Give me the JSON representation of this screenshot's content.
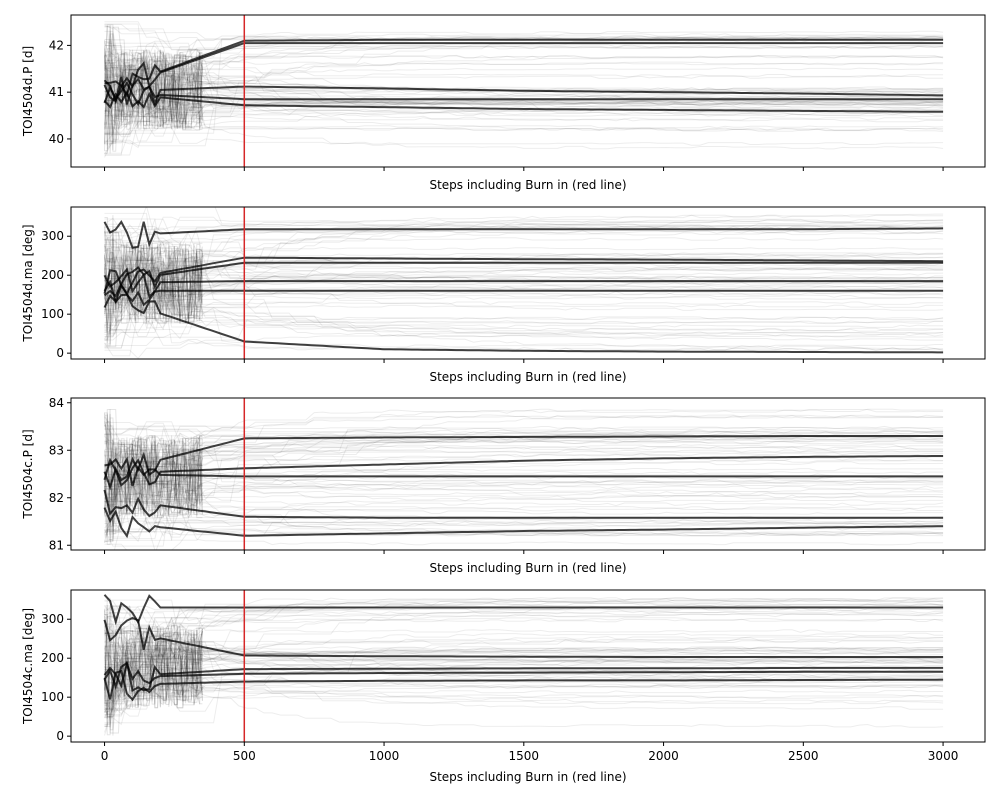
{
  "chart_data": [
    {
      "type": "line",
      "title": "",
      "xlabel": "Steps including Burn in (red line)",
      "ylabel": "TOI4504d.P [d]",
      "xlim": [
        -120,
        3150
      ],
      "ylim": [
        39.4,
        42.65
      ],
      "x_ticks": [
        0,
        500,
        1000,
        1500,
        2000,
        2500,
        3000
      ],
      "y_ticks": [
        40,
        41,
        42
      ],
      "burn_in_step": 500,
      "x_tick_labels_shown": false,
      "walker_start_range": [
        39.6,
        42.5
      ],
      "series": [
        {
          "x": [
            0,
            500,
            1000,
            1500,
            2000,
            2500,
            3000
          ],
          "y": [
            41.0,
            42.1,
            42.12,
            42.12,
            42.12,
            42.12,
            42.12
          ]
        },
        {
          "x": [
            0,
            500,
            1000,
            1500,
            2000,
            2500,
            3000
          ],
          "y": [
            41.0,
            42.05,
            42.05,
            42.05,
            42.05,
            42.05,
            42.05
          ]
        },
        {
          "x": [
            0,
            500,
            1000,
            1500,
            2000,
            2500,
            3000
          ],
          "y": [
            41.0,
            41.12,
            41.08,
            41.03,
            41.0,
            40.97,
            40.93
          ]
        },
        {
          "x": [
            0,
            500,
            1000,
            1500,
            2000,
            2500,
            3000
          ],
          "y": [
            41.0,
            40.72,
            40.68,
            40.64,
            40.62,
            40.6,
            40.58
          ]
        },
        {
          "x": [
            0,
            500,
            1000,
            1500,
            2000,
            2500,
            3000
          ],
          "y": [
            41.0,
            40.85,
            40.85,
            40.85,
            40.85,
            40.85,
            40.85
          ]
        }
      ]
    },
    {
      "type": "line",
      "title": "",
      "xlabel": "Steps including Burn in (red line)",
      "ylabel": "TOI4504d.ma [deg]",
      "xlim": [
        -120,
        3150
      ],
      "ylim": [
        -15,
        375
      ],
      "x_ticks": [
        0,
        500,
        1000,
        1500,
        2000,
        2500,
        3000
      ],
      "y_ticks": [
        0,
        100,
        200,
        300
      ],
      "burn_in_step": 500,
      "x_tick_labels_shown": false,
      "walker_start_range": [
        5,
        355
      ],
      "series": [
        {
          "x": [
            0,
            500,
            1000,
            1500,
            2000,
            2500,
            3000
          ],
          "y": [
            180,
            245,
            243,
            241,
            240,
            238,
            236
          ]
        },
        {
          "x": [
            0,
            500,
            1000,
            1500,
            2000,
            2500,
            3000
          ],
          "y": [
            180,
            232,
            232,
            232,
            232,
            232,
            232
          ]
        },
        {
          "x": [
            0,
            500,
            1000,
            1500,
            2000,
            2500,
            3000
          ],
          "y": [
            180,
            185,
            185,
            185,
            185,
            185,
            185
          ]
        },
        {
          "x": [
            0,
            500,
            1000,
            1500,
            2000,
            2500,
            3000
          ],
          "y": [
            150,
            30,
            10,
            6,
            4,
            3,
            2
          ]
        },
        {
          "x": [
            0,
            500,
            1000,
            1500,
            2000,
            2500,
            3000
          ],
          "y": [
            300,
            318,
            318,
            318,
            318,
            318,
            320
          ]
        },
        {
          "x": [
            0,
            500,
            1000,
            1500,
            2000,
            2500,
            3000
          ],
          "y": [
            160,
            160,
            160,
            160,
            160,
            160,
            160
          ]
        }
      ]
    },
    {
      "type": "line",
      "title": "",
      "xlabel": "Steps including Burn in (red line)",
      "ylabel": "TOI4504c.P [d]",
      "xlim": [
        -120,
        3150
      ],
      "ylim": [
        80.9,
        84.1
      ],
      "x_ticks": [
        0,
        500,
        1000,
        1500,
        2000,
        2500,
        3000
      ],
      "y_ticks": [
        81,
        82,
        83,
        84
      ],
      "burn_in_step": 500,
      "x_tick_labels_shown": false,
      "walker_start_range": [
        81.0,
        83.9
      ],
      "series": [
        {
          "x": [
            0,
            500,
            1000,
            1500,
            2000,
            2500,
            3000
          ],
          "y": [
            82.5,
            83.25,
            83.27,
            83.28,
            83.29,
            83.3,
            83.3
          ]
        },
        {
          "x": [
            0,
            500,
            1000,
            1500,
            2000,
            2500,
            3000
          ],
          "y": [
            82.5,
            82.62,
            82.7,
            82.78,
            82.83,
            82.86,
            82.88
          ]
        },
        {
          "x": [
            0,
            500,
            1000,
            1500,
            2000,
            2500,
            3000
          ],
          "y": [
            82.5,
            82.45,
            82.45,
            82.45,
            82.45,
            82.45,
            82.45
          ]
        },
        {
          "x": [
            0,
            500,
            1000,
            1500,
            2000,
            2500,
            3000
          ],
          "y": [
            82.0,
            81.6,
            81.58,
            81.58,
            81.58,
            81.58,
            81.58
          ]
        },
        {
          "x": [
            0,
            500,
            1000,
            1500,
            2000,
            2500,
            3000
          ],
          "y": [
            81.5,
            81.2,
            81.25,
            81.3,
            81.33,
            81.37,
            81.4
          ]
        }
      ]
    },
    {
      "type": "line",
      "title": "",
      "xlabel": "Steps including Burn in (red line)",
      "ylabel": "TOI4504c.ma [deg]",
      "xlim": [
        -120,
        3150
      ],
      "ylim": [
        -15,
        375
      ],
      "x_ticks": [
        0,
        500,
        1000,
        1500,
        2000,
        2500,
        3000
      ],
      "y_ticks": [
        0,
        100,
        200,
        300
      ],
      "burn_in_step": 500,
      "x_tick_labels_shown": true,
      "walker_start_range": [
        0,
        355
      ],
      "series": [
        {
          "x": [
            0,
            500,
            1000,
            1500,
            2000,
            2500,
            3000
          ],
          "y": [
            280,
            207,
            205,
            204,
            203,
            203,
            203
          ]
        },
        {
          "x": [
            0,
            500,
            1000,
            1500,
            2000,
            2500,
            3000
          ],
          "y": [
            150,
            172,
            173,
            174,
            174,
            175,
            175
          ]
        },
        {
          "x": [
            0,
            500,
            1000,
            1500,
            2000,
            2500,
            3000
          ],
          "y": [
            150,
            160,
            162,
            163,
            164,
            165,
            165
          ]
        },
        {
          "x": [
            0,
            500,
            1000,
            1500,
            2000,
            2500,
            3000
          ],
          "y": [
            130,
            140,
            142,
            143,
            143,
            144,
            145
          ]
        },
        {
          "x": [
            0,
            500,
            1000,
            1500,
            2000,
            2500,
            3000
          ],
          "y": [
            330,
            330,
            330,
            330,
            330,
            330,
            330
          ]
        }
      ]
    }
  ],
  "colors": {
    "trace": "#000000",
    "burn_in_line": "#d62728",
    "axes": "#000000",
    "background": "#ffffff"
  }
}
